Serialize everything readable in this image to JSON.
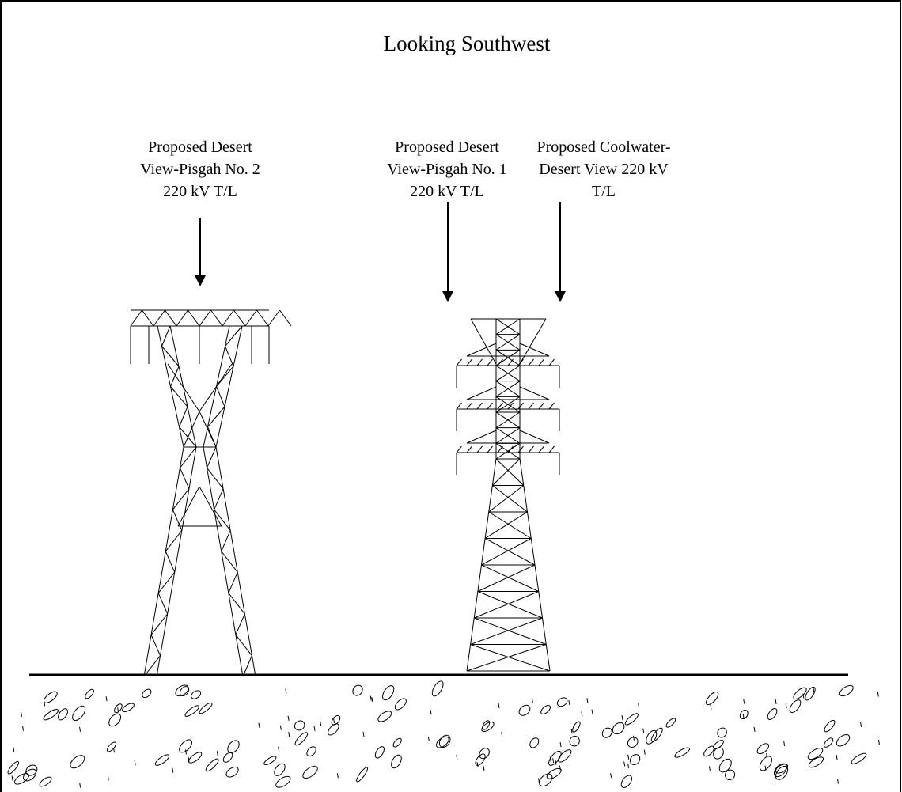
{
  "title": "Looking Southwest",
  "labels": [
    {
      "lines": [
        "Proposed Desert",
        "View-Pisgah No. 2",
        "220 kV T/L"
      ]
    },
    {
      "lines": [
        "Proposed Desert",
        "View-Pisgah No. 1",
        "220 kV T/L"
      ]
    },
    {
      "lines": [
        "Proposed Coolwater-",
        "Desert View 220 kV",
        "T/L"
      ]
    }
  ]
}
